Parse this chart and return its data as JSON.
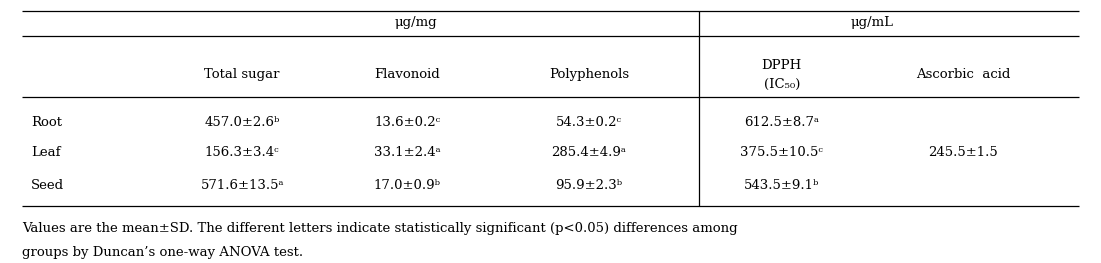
{
  "unit_ug_mg": "μg/mg",
  "unit_ug_ml": "μg/mL",
  "col_headers_main": [
    "Total sugar",
    "Flavonoid",
    "Polyphenols"
  ],
  "col_header_dpph_line1": "DPPH",
  "col_header_dpph_line2": "(IC₅₀)",
  "col_header_ascorbic": "Ascorbic  acid",
  "row_labels": [
    "Root",
    "Leaf",
    "Seed"
  ],
  "cell_data": [
    [
      "457.0±2.6ᵇ",
      "13.6±0.2ᶜ",
      "54.3±0.2ᶜ",
      "612.5±8.7ᵃ",
      ""
    ],
    [
      "156.3±3.4ᶜ",
      "33.1±2.4ᵃ",
      "285.4±4.9ᵃ",
      "375.5±10.5ᶜ",
      "245.5±1.5"
    ],
    [
      "571.6±13.5ᵃ",
      "17.0±0.9ᵇ",
      "95.9±2.3ᵇ",
      "543.5±9.1ᵇ",
      ""
    ]
  ],
  "footer_line1": "Values are the mean±SD. The different letters indicate statistically significant (p<0.05) differences among",
  "footer_line2": "groups by Duncan’s one-way ANOVA test.",
  "bg_color": "#ffffff",
  "text_color": "#000000",
  "font_size": 9.5,
  "footer_font_size": 9.5,
  "line_color": "#000000",
  "line_width": 0.9,
  "fig_width": 11.01,
  "fig_height": 2.63,
  "dpi": 100
}
